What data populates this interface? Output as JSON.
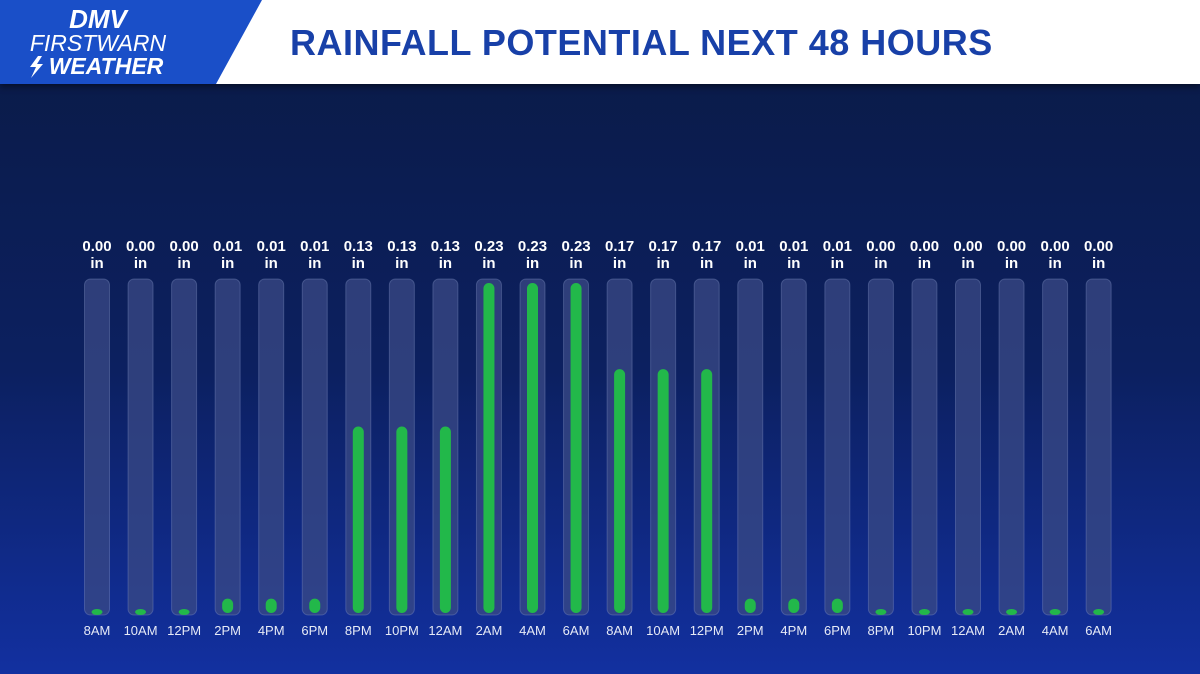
{
  "brand": {
    "line1": "DMV",
    "line2": "FIRSTWARN",
    "line3": "WEATHER"
  },
  "colors": {
    "header_bg": "#ffffff",
    "title_text": "#1840a8",
    "logo_blue": "#1a4fc8",
    "bar_fill": "#22b84a",
    "track_fill": "#3a4a86"
  },
  "chart_data": {
    "type": "bar",
    "title": "RAINFALL POTENTIAL NEXT 48 HOURS",
    "unit": "in",
    "xlabel": "",
    "ylabel": "",
    "ylim": [
      0,
      0.23
    ],
    "categories": [
      "8AM",
      "10AM",
      "12PM",
      "2PM",
      "4PM",
      "6PM",
      "8PM",
      "10PM",
      "12AM",
      "2AM",
      "4AM",
      "6AM",
      "8AM",
      "10AM",
      "12PM",
      "2PM",
      "4PM",
      "6PM",
      "8PM",
      "10PM",
      "12AM",
      "2AM",
      "4AM",
      "6AM"
    ],
    "labels": [
      "0.00",
      "0.00",
      "0.00",
      "0.01",
      "0.01",
      "0.01",
      "0.13",
      "0.13",
      "0.13",
      "0.23",
      "0.23",
      "0.23",
      "0.17",
      "0.17",
      "0.17",
      "0.01",
      "0.01",
      "0.01",
      "0.00",
      "0.00",
      "0.00",
      "0.00",
      "0.00",
      "0.00"
    ],
    "values": [
      0.0,
      0.0,
      0.0,
      0.01,
      0.01,
      0.01,
      0.13,
      0.13,
      0.13,
      0.23,
      0.23,
      0.23,
      0.17,
      0.17,
      0.17,
      0.01,
      0.01,
      0.01,
      0.0,
      0.0,
      0.0,
      0.0,
      0.0,
      0.0
    ]
  }
}
